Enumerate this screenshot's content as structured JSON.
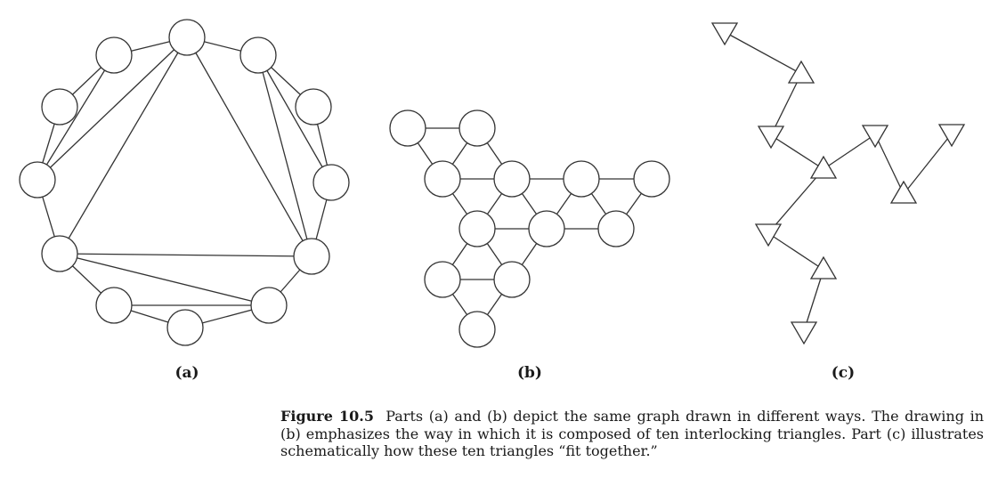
{
  "labels": {
    "a": "(a)",
    "b": "(b)",
    "c": "(c)"
  },
  "caption": {
    "figure_label": "Figure 10.5",
    "text": "Parts (a) and (b) depict the same graph drawn in different ways. The drawing in (b) emphasizes the way in which it is composed of ten interlocking triangles. Part (c) illustrates schematically how these ten triangles “fit together.”"
  }
}
